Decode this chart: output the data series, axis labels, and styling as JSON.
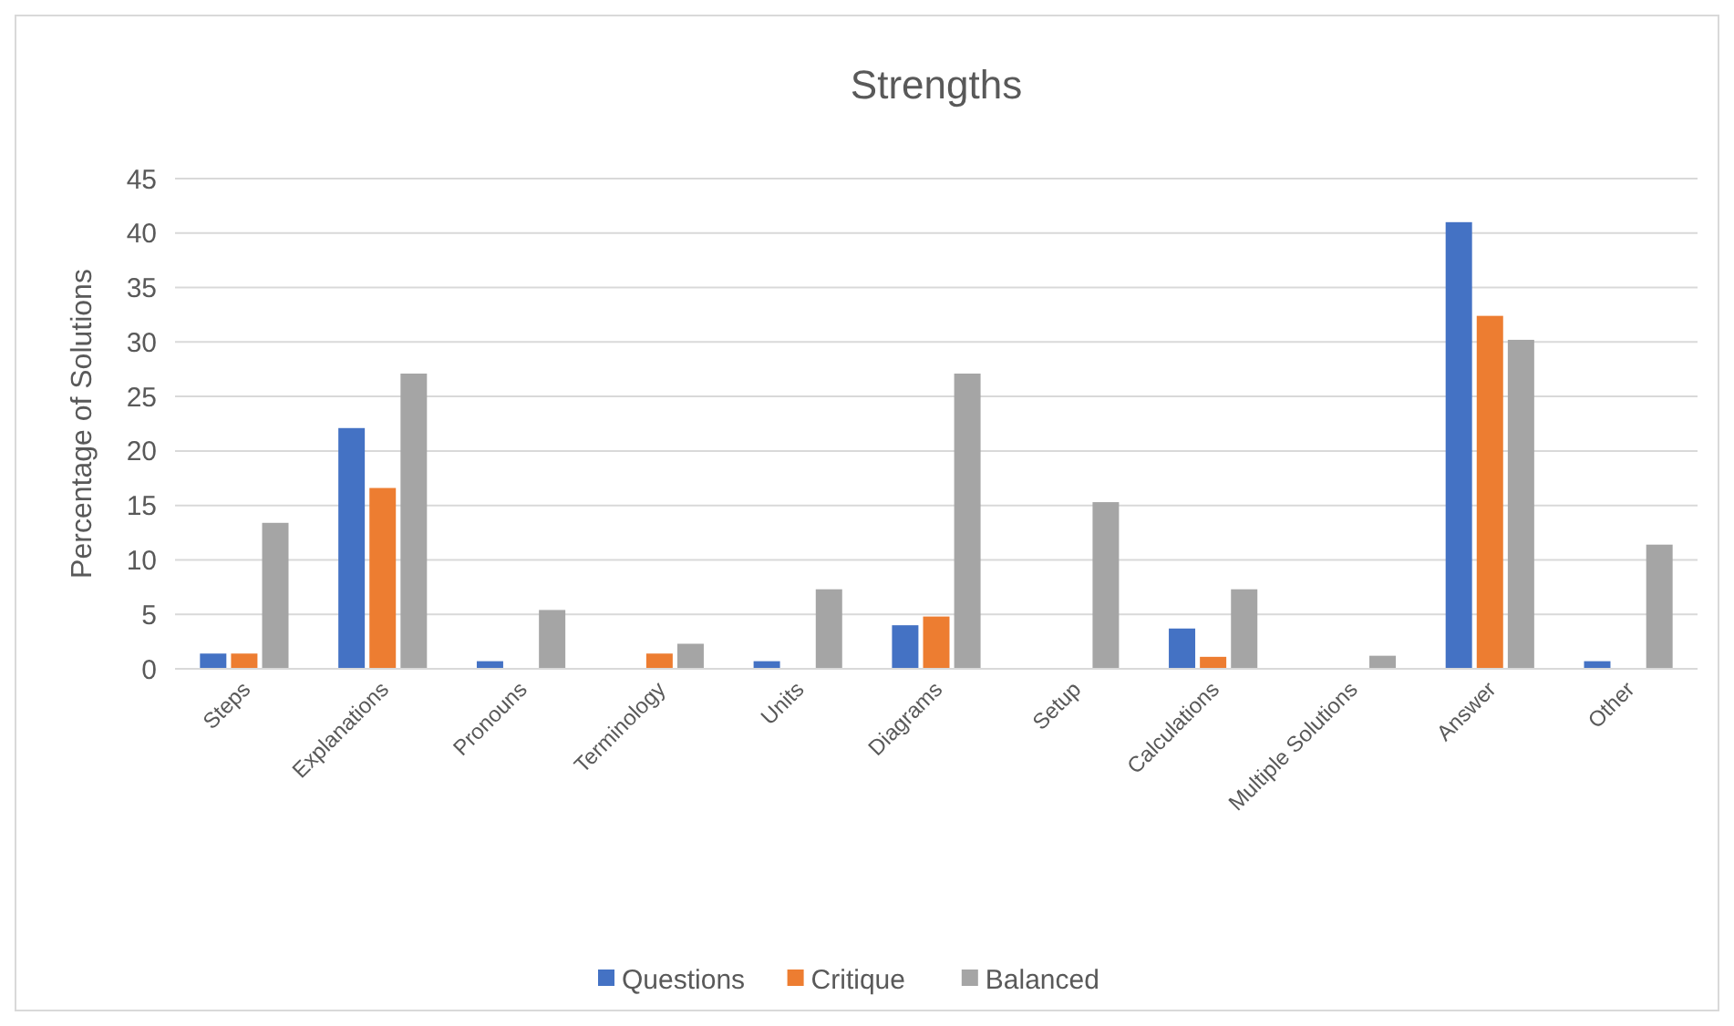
{
  "chart_data": {
    "type": "bar",
    "title": "Strengths",
    "ylabel": "Percentage of Solutions",
    "categories": [
      "Steps",
      "Explanations",
      "Pronouns",
      "Terminology",
      "Units",
      "Diagrams",
      "Setup",
      "Calculations",
      "Multiple Solutions",
      "Answer",
      "Other"
    ],
    "series": [
      {
        "name": "Questions",
        "color": "#4472c4",
        "values": [
          1.4,
          22.1,
          0.7,
          0,
          0.7,
          4,
          0,
          3.7,
          0,
          41,
          0.7
        ]
      },
      {
        "name": "Critique",
        "color": "#ed7d31",
        "values": [
          1.4,
          16.6,
          0,
          1.4,
          0,
          4.8,
          0,
          1.1,
          0,
          32.4,
          0
        ]
      },
      {
        "name": "Balanced",
        "color": "#a5a5a5",
        "values": [
          13.4,
          27.1,
          5.4,
          2.3,
          7.3,
          27.1,
          15.3,
          7.3,
          1.2,
          30.2,
          11.4
        ]
      }
    ],
    "ylim": [
      0,
      45
    ],
    "yticks": [
      0,
      5,
      10,
      15,
      20,
      25,
      30,
      35,
      40,
      45
    ],
    "grid": "y",
    "legend": "bottom"
  }
}
